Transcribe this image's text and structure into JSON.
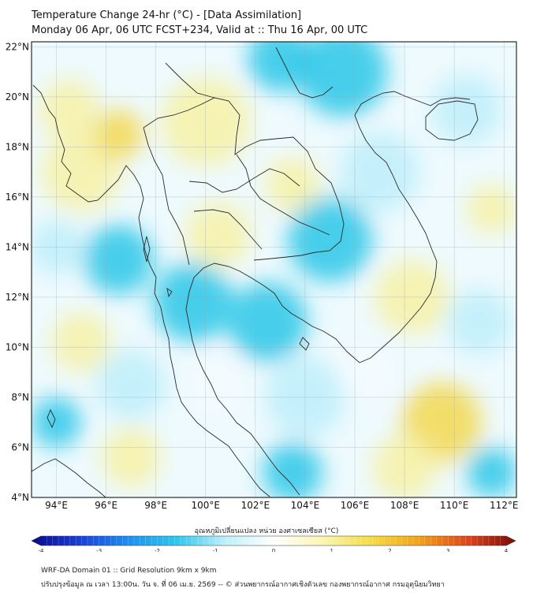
{
  "header": {
    "title": "Temperature Change 24-hr (°C) - [Data Assimilation]",
    "subtitle": "Monday 06 Apr, 06 UTC FCST+234, Valid at :: Thu 16 Apr, 00 UTC"
  },
  "map": {
    "lon_range": [
      93,
      112.5
    ],
    "lat_range": [
      4,
      22.2
    ],
    "lat_ticks": [
      "4°N",
      "6°N",
      "8°N",
      "10°N",
      "12°N",
      "14°N",
      "16°N",
      "18°N",
      "20°N",
      "22°N"
    ],
    "lon_ticks": [
      "94°E",
      "96°E",
      "98°E",
      "100°E",
      "102°E",
      "104°E",
      "106°E",
      "108°E",
      "110°E",
      "112°E"
    ],
    "lat_values": [
      4,
      6,
      8,
      10,
      12,
      14,
      16,
      18,
      20,
      22
    ],
    "lon_values": [
      94,
      96,
      98,
      100,
      102,
      104,
      106,
      108,
      110,
      112
    ],
    "grid": true,
    "field_colors": {
      "cold": "#29c7e8",
      "cool": "#bdeefa",
      "neutral": "#f4fbff",
      "warm": "#f7f1a6",
      "hot": "#f3d84f"
    }
  },
  "colorbar": {
    "label": "อุณหภูมิเปลี่ยนแปลง หน่วย องศาเซลเซียส (°C)",
    "min": -4,
    "max": 4,
    "ticks": [
      "-4",
      "-3",
      "-2",
      "-1",
      "0",
      "1",
      "2",
      "3",
      "4"
    ],
    "tick_values": [
      -4,
      -3,
      -2,
      -1,
      0,
      1,
      2,
      3,
      4
    ],
    "colors": [
      "#08088c",
      "#1a3fd6",
      "#1e8ff0",
      "#2ec7ec",
      "#bff0fb",
      "#ffffff",
      "#fbf6b3",
      "#f5dd45",
      "#f2a21a",
      "#e0471a",
      "#7a0a0a"
    ]
  },
  "footer": {
    "line1": "WRF-DA Domain 01 :: Grid Resolution 9km x 9km",
    "line2": "ปรับปรุงข้อมูล ณ เวลา 13:00น. วัน จ. ที่ 06 เม.ย. 2569 -- © ส่วนพยากรณ์อากาศเชิงตัวเลข กองพยากรณ์อากาศ กรมอุตุนิยมวิทยา"
  }
}
